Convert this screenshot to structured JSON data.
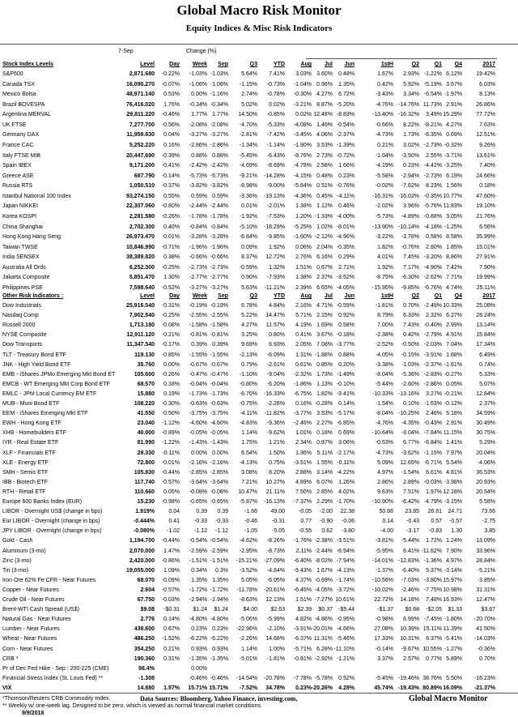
{
  "header": {
    "title": "Global Macro Risk Monitor",
    "subtitle": "Equity Indices & Misc Risk Indicators",
    "date_label": "7-Sep",
    "change_label": "Change (%)"
  },
  "columns": [
    "Level",
    "Day",
    "Week",
    "Sep",
    "Q3",
    "YTD",
    "Aug",
    "Jul",
    "Jun",
    "1stH",
    "Q2",
    "Q1",
    "Q4",
    "2017"
  ],
  "stock_section": {
    "title": "Stock Index Levels",
    "rows": [
      [
        "S&P500",
        "2,871.680",
        "-0.22%",
        "-1.03%",
        "-1.03%",
        "5.64%",
        "7.41%",
        "3.03%",
        "3.60%",
        "0.48%",
        "1.67%",
        "2.93%",
        "-1.22%",
        "6.12%",
        "19.42%"
      ],
      [
        "Canada TSX",
        "16,090.270",
        "-0.07%",
        "-1.06%",
        "-1.06%",
        "-1.15%",
        "-0.73%",
        "-1.04%",
        "0.96%",
        "1.35%",
        "0.42%",
        "5.92%",
        "-5.19%",
        "3.67%",
        "6.03%"
      ],
      [
        "Mexico Bolsa",
        "48,971.140",
        "0.53%",
        "0.00%",
        "-1.16%",
        "2.74%",
        "-0.78%",
        "-0.30%",
        "4.27%",
        "6.72%",
        "-3.43%",
        "3.34%",
        "-6.54%",
        "-1.97%",
        "8.13%"
      ],
      [
        "Brazil BOVESPA",
        "76,416.020",
        "1.76%",
        "-0.34%",
        "-0.34%",
        "5.02%",
        "0.02%",
        "-3.21%",
        "8.87%",
        "-5.20%",
        "-4.76%",
        "-14.76%",
        "11.73%",
        "2.91%",
        "26.86%"
      ],
      [
        "Argentina MERVAL",
        "29,811.220",
        "-0.46%",
        "1.77%",
        "1.77%",
        "14.50%",
        "-0.85%",
        "0.02%",
        "12.48%",
        "-8.83%",
        "-13.40%",
        "-16.32%",
        "3.49%",
        "15.29%",
        "77.72%"
      ],
      [
        "UK FTSE",
        "7,277.700",
        "-0.56%",
        "-2.08%",
        "-2.08%",
        "-4.70%",
        "-5.33%",
        "-4.08%",
        "1.46%",
        "-0.54%",
        "-0.66%",
        "8.22%",
        "-8.21%",
        "4.27%",
        "7.63%"
      ],
      [
        "Germany DAX",
        "11,959.630",
        "0.04%",
        "-3.27%",
        "-3.27%",
        "-2.81%",
        "-7.42%",
        "-3.45%",
        "4.06%",
        "-2.37%",
        "-4.73%",
        "1.73%",
        "-6.35%",
        "0.69%",
        "12.51%"
      ],
      [
        "France CAC",
        "5,252.220",
        "0.16%",
        "-2.86%",
        "-2.86%",
        "-1.34%",
        "-1.14%",
        "-1.90%",
        "3.53%",
        "-1.39%",
        "0.21%",
        "3.02%",
        "-2.73%",
        "-0.32%",
        "9.26%"
      ],
      [
        "Italy FTSE MIB",
        "20,447.690",
        "-0.39%",
        "0.88%",
        "0.88%",
        "-5.45%",
        "-6.43%",
        "-8.76%",
        "2.73%",
        "-0.72%",
        "-1.04%",
        "-3.50%",
        "2.55%",
        "-3.71%",
        "13.61%"
      ],
      [
        "Spain IBEX",
        "9,171.200",
        "-0.41%",
        "-2.42%",
        "-2.42%",
        "-4.69%",
        "-8.69%",
        "-4.78%",
        "2.58%",
        "1.66%",
        "-4.19%",
        "0.23%",
        "-4.42%",
        "-3.25%",
        "7.40%"
      ],
      [
        "Greece ASE",
        "687.790",
        "-0.14%",
        "-5.73%",
        "-5.73%",
        "-9.21%",
        "-14.28%",
        "-4.15%",
        "0.48%",
        "0.23%",
        "-5.58%",
        "-2.94%",
        "-2.73%",
        "6.19%",
        "24.66%"
      ],
      [
        "Russia RTS",
        "1,050.510",
        "-0.37%",
        "-3.82%",
        "-3.82%",
        "-8.98%",
        "-9.00%",
        "-5.84%",
        "0.51%",
        "-0.76%",
        "-0.02%",
        "-7.62%",
        "8.23%",
        "1.56%",
        "0.18%"
      ],
      [
        "Istanbul National 100 Index",
        "93,274.150",
        "0.55%",
        "0.59%",
        "0.59%",
        "-3.36%",
        "-19.13%",
        "-4.36%",
        "0.45%",
        "-4.11%",
        "-16.31%",
        "-16.02%",
        "-0.35%",
        "10.77%",
        "47.60%"
      ],
      [
        "Japan NIKKEI",
        "22,307.060",
        "-0.80%",
        "-2.44%",
        "-2.44%",
        "0.01%",
        "-2.01%",
        "1.38%",
        "1.12%",
        "0.46%",
        "-2.02%",
        "3.96%",
        "-5.76%",
        "11.83%",
        "19.10%"
      ],
      [
        "Korea KOSPI",
        "2,281.580",
        "-0.26%",
        "-1.78%",
        "-1.78%",
        "-1.92%",
        "-7.53%",
        "1.20%",
        "-1.33%",
        "-4.00%",
        "-5.73%",
        "-4.89%",
        "-0.88%",
        "3.05%",
        "21.76%"
      ],
      [
        "China Shanghai",
        "2,702.300",
        "0.40%",
        "-0.84%",
        "-0.84%",
        "-5.10%",
        "-18.29%",
        "-5.25%",
        "1.02%",
        "-8.01%",
        "-13.90%",
        "-10.14%",
        "-4.18%",
        "-1.25%",
        "6.56%"
      ],
      [
        "Hong Kong Hang Seng",
        "26,973.470",
        "-0.01%",
        "-3.28%",
        "-3.28%",
        "-6.84%",
        "-9.85%",
        "-1.60%",
        "-2.12%",
        "-4.96%",
        "-3.22%",
        "-3.78%",
        "0.58%",
        "8.58%",
        "35.99%"
      ],
      [
        "Taiwan  TWSE",
        "10,846.990",
        "-0.71%",
        "-1.96%",
        "-1.96%",
        "0.09%",
        "1.92%",
        "0.06%",
        "2.04%",
        "-0.35%",
        "1.82%",
        "-0.76%",
        "2.60%",
        "1.85%",
        "15.01%"
      ],
      [
        "India SENSEX",
        "38,389.820",
        "0.38%",
        "-0.66%",
        "-0.66%",
        "8.37%",
        "12.72%",
        "2.76%",
        "6.16%",
        "0.29%",
        "4.01%",
        "7.45%",
        "-3.20%",
        "8.86%",
        "27.91%"
      ],
      [
        "Australia All Ords",
        "6,252.300",
        "-0.25%",
        "-2.73%",
        "-2.73%",
        "-0.59%",
        "1.32%",
        "1.51%",
        "0.67%",
        "2.71%",
        "1.92%",
        "7.17%",
        "-4.90%",
        "7.42%",
        "7.90%"
      ],
      [
        "Jakarta Composite",
        "5,851.470",
        "1.30%",
        "-2.77%",
        "-2.77%",
        "0.90%",
        "-7.93%",
        "1.38%",
        "2.37%",
        "-3.52%",
        "-8.75%",
        "-6.30%",
        "-2.62%",
        "7.71%",
        "19.99%"
      ],
      [
        "Philippines PSE",
        "7,598.640",
        "-0.52%",
        "-3.27%",
        "-3.27%",
        "5.63%",
        "-11.21%",
        "2.39%",
        "6.65%",
        "-4.05%",
        "-15.95%",
        "-9.85%",
        "-6.76%",
        "4.74%",
        "25.11%"
      ]
    ]
  },
  "other_section": {
    "title": "Other Risk Indicators :",
    "rows": [
      [
        "Dow Industrials",
        "25,916.540",
        "-0.31%",
        "-0.19%",
        "-0.19%",
        "6.78%",
        "4.84%",
        "2.16%",
        "4.71%",
        "-0.59%",
        "-1.81%",
        "0.70%",
        "-2.49%",
        "10.33%",
        "25.08%"
      ],
      [
        "Nasdaq Comp",
        "7,902.540",
        "-0.25%",
        "-2.55%",
        "-2.55%",
        "5.22%",
        "14.47%",
        "5.71%",
        "2.15%",
        "0.92%",
        "8.79%",
        "6.33%",
        "2.32%",
        "6.27%",
        "28.24%"
      ],
      [
        "Russell 2000",
        "1,713.180",
        "-0.08%",
        "-1.58%",
        "-1.58%",
        "4.27%",
        "11.57%",
        "4.19%",
        "1.69%",
        "0.58%",
        "7.00%",
        "7.43%",
        "-0.40%",
        "2.99%",
        "13.14%"
      ],
      [
        "NYSE Composite",
        "12,911.120",
        "-0.21%",
        "-0.81%",
        "-0.81%",
        "3.25%",
        "0.80%",
        "0.41%",
        "3.67%",
        "-0.18%",
        "-2.38%",
        "0.42%",
        "-2.79%",
        "4.91%",
        "15.84%"
      ],
      [
        "Dow Transports",
        "11,347.540",
        "-0.17%",
        "0.39%",
        "0.39%",
        "9.69%",
        "6.93%",
        "2.05%",
        "7.08%",
        "-3.77%",
        "-2.52%",
        "-0.50%",
        "-2.03%",
        "7.04%",
        "17.34%"
      ],
      [
        "TLT - Treasury Bond ETF",
        "119.130",
        "-0.85%",
        "-1.55%",
        "-1.55%",
        "-2.13%",
        "-6.09%",
        "1.31%",
        "-1.88%",
        "0.88%",
        "-4.05%",
        "-0.15%",
        "-3.91%",
        "1.68%",
        "6.49%"
      ],
      [
        "JNK - High Yield Bond ETF",
        "35.760",
        "0.00%",
        "-0.67%",
        "-0.67%",
        "0.79%",
        "-2.61%",
        "0.61%",
        "0.85%",
        "0.20%",
        "-3.38%",
        "-1.03%",
        "-2.37%",
        "-1.61%",
        "0.74%"
      ],
      [
        "EMB - iShares JPMo Emerging Mkt Bond ET",
        "105.600",
        "-0.26%",
        "-0.47%",
        "-0.47%",
        "-1.10%",
        "-9.04%",
        "-2.32%",
        "1.73%",
        "-1.49%",
        "-8.04%",
        "-5.36%",
        "-2.83%",
        "-0.27%",
        "5.33%"
      ],
      [
        "EMCB - WT Emerging Mkt Corp Bond ETF",
        "68.570",
        "0.18%",
        "-0.04%",
        "-0.04%",
        "-0.80%",
        "-6.20%",
        "-1.86%",
        "1.13%",
        "-0.10%",
        "-5.44%",
        "-2.60%",
        "-2.86%",
        "0.05%",
        "5.07%"
      ],
      [
        "EMLC - JPM Local Currency EM ETF",
        "15.880",
        "0.19%",
        "-1.73%",
        "-1.73%",
        "-6.70%",
        "-16.33%",
        "-6.75%",
        "1.82%",
        "-3.41%",
        "-10.33%",
        "-13.16%",
        "3.27%",
        "-0.21%",
        "12.84%"
      ],
      [
        "MUB - Muni Bond ETF",
        "108.220",
        "-0.30%",
        "-0.63%",
        "-0.63%",
        "-0.75%",
        "-2.28%",
        "0.16%",
        "-0.28%",
        "0.14%",
        "-1.54%",
        "0.10%",
        "-1.63%",
        "-0.12%",
        "2.37%"
      ],
      [
        "EEM - iShares Emerging Mkt ETF",
        "41.550",
        "-0.50%",
        "-3.75%",
        "-3.75%",
        "-4.11%",
        "-11.82%",
        "-3.77%",
        "3.53%",
        "-5.17%",
        "-8.04%",
        "-10.25%",
        "2.46%",
        "5.18%",
        "34.59%"
      ],
      [
        "EWH - Hong Kong ETF",
        "23.040",
        "-1.12%",
        "-4.60%",
        "-4.60%",
        "-4.83%",
        "-9.36%",
        "-2.46%",
        "2.27%",
        "-6.85%",
        "-4.76%",
        "-4.35%",
        "-0.43%",
        "2.91%",
        "30.49%"
      ],
      [
        "XHB - Homebuilders ETF",
        "40.000",
        "-0.89%",
        "-0.05%",
        "-0.05%",
        "1.14%",
        "-9.62%",
        "1.01%",
        "0.18%",
        "0.69%",
        "-10.64%",
        "-3.04%",
        "-7.84%",
        "11.15%",
        "30.75%"
      ],
      [
        "IYR - Real Estate ETF",
        "81.990",
        "-1.22%",
        "-1.43%",
        "-1.43%",
        "1.75%",
        "1.21%",
        "2.34%",
        "0.87%",
        "3.06%",
        "-0.53%",
        "6.77%",
        "-6.84%",
        "1.41%",
        "5.29%"
      ],
      [
        "XLF - Financials ETF",
        "28.330",
        "-0.11%",
        "0.00%",
        "0.00%",
        "6.54%",
        "1.50%",
        "1.36%",
        "5.11%",
        "-2.17%",
        "-4.73%",
        "-3.62%",
        "-1.15%",
        "7.97%",
        "20.04%"
      ],
      [
        "XLE - Energy ETF",
        "72.800",
        "-0.01%",
        "-2.16%",
        "-2.16%",
        "-4.13%",
        "0.75%",
        "-3.51%",
        "1.55%",
        "-0.11%",
        "5.09%",
        "12.65%",
        "-6.71%",
        "5.54%",
        "-4.06%"
      ],
      [
        "SMH - Semis ETF",
        "105.830",
        "-0.44%",
        "-2.85%",
        "-2.85%",
        "3.08%",
        "8.20%",
        "2.88%",
        "3.14%",
        "-4.22%",
        "4.97%",
        "-1.54%",
        "6.61%",
        "4.81%",
        "36.53%"
      ],
      [
        "IBB - Biotech ETF",
        "117.740",
        "-0.57%",
        "-3.64%",
        "-3.64%",
        "7.21%",
        "10.27%",
        "4.89%",
        "6.07%",
        "1.26%",
        "2.86%",
        "2.89%",
        "-0.03%",
        "-3.98%",
        "20.93%"
      ],
      [
        "RTH - Retail ETF",
        "110.660",
        "0.05%",
        "-0.08%",
        "-0.08%",
        "10.47%",
        "21.11%",
        "7.50%",
        "2.85%",
        "4.02%",
        "9.63%",
        "7.51%",
        "1.97%",
        "12.18%",
        "20.54%"
      ],
      [
        "Europe 600 Banks Index (EUR)",
        "15.230",
        "-0.98%",
        "-0.65%",
        "-0.65%",
        "-5.87%",
        "-16.13%",
        "-7.37%",
        "2.29%",
        "-1.70%",
        "-10.90%",
        "-6.42%",
        "-4.79%",
        "-3.15%",
        "5.58%"
      ],
      [
        "LIBOR - Overnight US$  (change in bps)",
        "1.919%",
        "0.04",
        "0.39",
        "0.39",
        "-1.66",
        "49.00",
        "-0.05",
        "-2.00",
        "22.38",
        "50.66",
        "23.85",
        "26.81",
        "24.71",
        "73.66"
      ],
      [
        "Eur LIBOR - Overnight (change in bps)",
        "-0.444%",
        "0.41",
        "-0.33",
        "-0.33",
        "-0.46",
        "-0.31",
        "0.77",
        "-0.90",
        "-0.06",
        "0.14",
        "-0.43",
        "0.57",
        "-0.57",
        "-2.75"
      ],
      [
        "JPY LIBOR - Overnight (change in bps)",
        "-0.080%",
        "-1.02",
        "-1.12",
        "-1.12",
        "-1.05",
        "-5.05",
        "-0.55",
        "0.62",
        "-3.80",
        "-4.00",
        "-3.17",
        "-0.83",
        "1.30",
        "3.85"
      ],
      [
        "Gold - Cash",
        "1,194.700",
        "-0.44%",
        "-0.54%",
        "-0.54%",
        "-4.62%",
        "-8.26%",
        "-1.76%",
        "-2.38%",
        "-3.51%",
        "-3.81%",
        "-5.44%",
        "1.72%",
        "1.24%",
        "13.09%"
      ],
      [
        "Aluminum (3-mo)",
        "2,070.000",
        "1.47%",
        "-2.59%",
        "-2.59%",
        "-2.95%",
        "-8.73%",
        "2.11%",
        "-2.44%",
        "-6.94%",
        "-5.95%",
        "6.41%",
        "-11.62%",
        "7.90%",
        "33.96%"
      ],
      [
        "Zinc (3-mo)",
        "2,420.000",
        "-0.86%",
        "-1.51%",
        "-1.51%",
        "-15.21%",
        "-27.09%",
        "-6.40%",
        "-8.02%",
        "-7.94%",
        "-14.01%",
        "-12.83%",
        "-1.36%",
        "4.97%",
        "28.84%"
      ],
      [
        "Tin (3-mo)",
        "19,055.000",
        "1.09%",
        "0.34%",
        "0.3%",
        "-3.52%",
        "-4.84%",
        "-5.43%",
        "1.67%",
        "-4.13%",
        "-1.37%",
        "-6.40%",
        "5.37%",
        "-3.14%",
        "-5.21%"
      ],
      [
        "Iron Ore 62% Fe CFR - Near Futures",
        "68.070",
        "-0.09%",
        "1.35%",
        "1.35%",
        "5.05%",
        "-6.05%",
        "4.37%",
        "-0.69%",
        "-1.74%",
        "-10.56%",
        "-7.03%",
        "-3.80%",
        "15.97%",
        "-3.85%"
      ],
      [
        "Copper - Near Futures",
        "2.604",
        "-0.57%",
        "-1.72%",
        "-1.72%",
        "-11.78%",
        "-20.61%",
        "-6.45%",
        "-4.05%",
        "-3.72%",
        "-10.02%",
        "-2.46%",
        "-7.75%",
        "10.98%",
        "31.31%"
      ],
      [
        "Crude Oil - Near Futures",
        "67.750",
        "-0.03%",
        "-2.94%",
        "-2.94%",
        "-8.63%",
        "12.13%",
        "1.51%",
        "-7.27%",
        "10.61%",
        "22.72%",
        "14.18%",
        "7.48%",
        "16.93%",
        "12.47%"
      ],
      [
        "Brent-WTI Cash Spread (US$)",
        "$9.08",
        "-$0.31",
        "$1.24",
        "$1.24",
        "$4.00",
        "$2.63",
        "$2.39",
        "$0.37",
        "-$5.44",
        "-$1.37",
        "$0.68",
        "-$2.05",
        "$1.33",
        "$3.67"
      ],
      [
        "Natural Gas - Near Futures",
        "2.776",
        "0.14%",
        "-4.80%",
        "-4.80%",
        "-5.06%",
        "-5.99%",
        "4.82%",
        "-4.86%",
        "-0.95%",
        "-0.98%",
        "6.99%",
        "-7.45%",
        "-1.80%",
        "-20.70%"
      ],
      [
        "Lumber - Near Futures",
        "438.600",
        "0.67%",
        "0.23%",
        "0.23%",
        "-22.96%",
        "-2.10%",
        "-3.91%",
        "-20.01%",
        "-4.66%",
        "27.08%",
        "10.39%",
        "15.11%",
        "11.39%",
        "41.50%"
      ],
      [
        "Wheat - Near Futures",
        "486.250",
        "-1.52%",
        "-6.22%",
        "-6.22%",
        "-2.26%",
        "14.68%",
        "-6.37%",
        "11.31%",
        "-5.46%",
        "17.33%",
        "10.31%",
        "6.37%",
        "-5.41%",
        "-14.03%"
      ],
      [
        "Corn - Near Futures",
        "354.250",
        "0.21%",
        "0.93%",
        "0.93%",
        "1.14%",
        "1.00%",
        "-5.71%",
        "6.28%",
        "-11.10%",
        "-0.14%",
        "-9.67%",
        "10.55%",
        "-1.27%",
        "-0.36%"
      ],
      [
        "CRB *",
        "190.360",
        "0.31%",
        "-1.35%",
        "-1.35%",
        "-5.01%",
        "-1.81%",
        "-0.81%",
        "-2.92%",
        "-1.21%",
        "3.37%",
        "2.57%",
        "0.77%",
        "5.89%",
        "0.70%"
      ],
      [
        "Pr of Dec Fed Hike - Sep : 200-225  (CME)",
        "98.4%",
        "",
        "0.00%",
        "",
        "",
        "",
        "",
        "",
        "",
        "",
        "",
        "",
        "",
        ""
      ],
      [
        "Financial Stress Index (St. Louis Fed) **",
        "-1.308",
        "",
        "-0.46%",
        "-0.46%",
        "-14.54%",
        "-20.78%",
        "-7.78%",
        "-5.78%",
        "0.52%",
        "-5.45%",
        "-19.46%",
        "38.76%",
        "5.50%",
        "-16.23%"
      ],
      [
        "VIX",
        "14.880",
        "1.57%",
        "15.71%",
        "15.71%",
        "-7.52%",
        "34.78%",
        "0.23%",
        "-20.26%",
        "4.28%",
        "45.74%",
        "-19.43%",
        "80.89%",
        "16.09%",
        "-21.37%"
      ]
    ]
  },
  "footer": {
    "note1": "*Thomson/Reuters CRB Commodity Index.",
    "sources": "Data Sources:  Bloomberg,  Yahoo Finance, investing.com,",
    "brand": "Global Macro Monitor",
    "note2": "**  Weekly w/ one-week lag. Designed to be zero, which is viewed as normal financial market conditions.",
    "date": "9/9/2018"
  }
}
